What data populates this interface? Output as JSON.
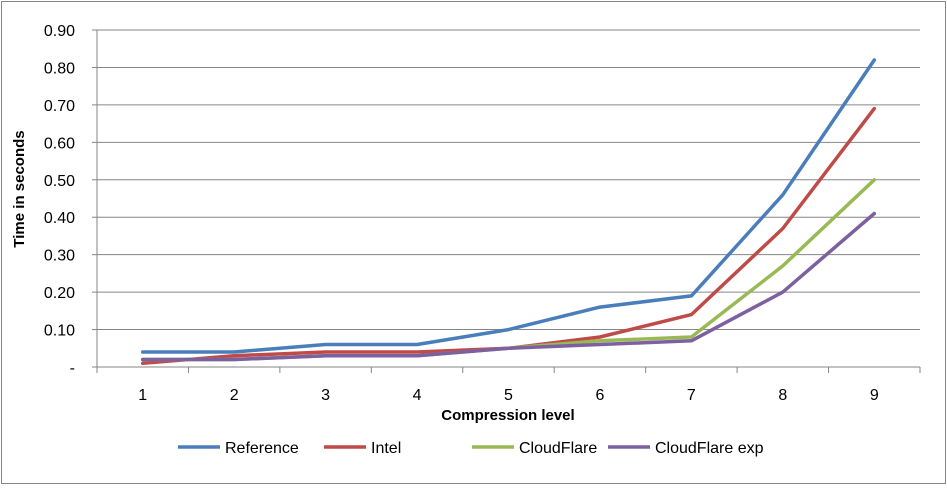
{
  "chart_data": {
    "type": "line",
    "title": "",
    "xlabel": "Compression level",
    "ylabel": "Time in seconds",
    "ylim": [
      0,
      0.9
    ],
    "grid": true,
    "legend_position": "bottom",
    "x": [
      "1",
      "2",
      "3",
      "4",
      "5",
      "6",
      "7",
      "8",
      "9"
    ],
    "y_ticks": [
      "-",
      "0.10",
      "0.20",
      "0.30",
      "0.40",
      "0.50",
      "0.60",
      "0.70",
      "0.80",
      "0.90"
    ],
    "series": [
      {
        "name": "Reference",
        "color": "#4a7ebb",
        "values": [
          0.04,
          0.04,
          0.06,
          0.06,
          0.1,
          0.16,
          0.19,
          0.46,
          0.82
        ]
      },
      {
        "name": "Intel",
        "color": "#be4b48",
        "values": [
          0.01,
          0.03,
          0.04,
          0.04,
          0.05,
          0.08,
          0.14,
          0.37,
          0.69
        ]
      },
      {
        "name": "CloudFlare",
        "color": "#98b954",
        "values": [
          0.02,
          0.02,
          0.03,
          0.03,
          0.05,
          0.07,
          0.08,
          0.27,
          0.5
        ]
      },
      {
        "name": "CloudFlare exp",
        "color": "#7d60a0",
        "values": [
          0.02,
          0.02,
          0.03,
          0.03,
          0.05,
          0.06,
          0.07,
          0.2,
          0.41
        ]
      }
    ]
  }
}
